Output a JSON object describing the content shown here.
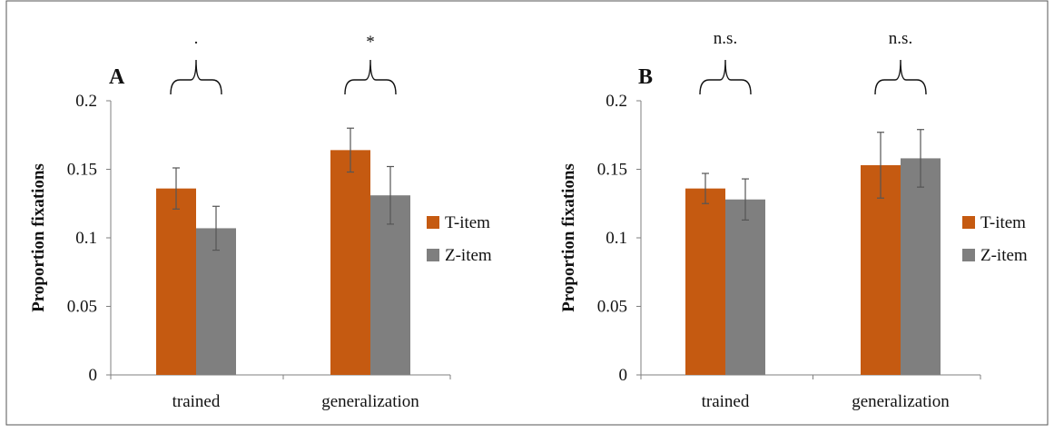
{
  "colors": {
    "t_item": "#c55a11",
    "z_item": "#7f7f7f",
    "frame": "#555555"
  },
  "chart_data": [
    {
      "type": "bar",
      "panel_label": "A",
      "ylabel": "Proportion fixations",
      "ylim": [
        0,
        0.2
      ],
      "yticks": [
        "0",
        "0.05",
        "0.1",
        "0.15",
        "0.2"
      ],
      "categories": [
        "trained",
        "generalization"
      ],
      "series": [
        {
          "name": "T-item",
          "values": [
            0.136,
            0.164
          ],
          "errors": [
            0.015,
            0.016
          ]
        },
        {
          "name": "Z-item",
          "values": [
            0.107,
            0.131
          ],
          "errors": [
            0.016,
            0.021
          ]
        }
      ],
      "significance": [
        ".",
        "*"
      ],
      "legend": "right",
      "grid": false
    },
    {
      "type": "bar",
      "panel_label": "B",
      "ylabel": "Proportion fixations",
      "ylim": [
        0,
        0.2
      ],
      "yticks": [
        "0",
        "0.05",
        "0.1",
        "0.15",
        "0.2"
      ],
      "categories": [
        "trained",
        "generalization"
      ],
      "series": [
        {
          "name": "T-item",
          "values": [
            0.136,
            0.153
          ],
          "errors": [
            0.011,
            0.024
          ]
        },
        {
          "name": "Z-item",
          "values": [
            0.128,
            0.158
          ],
          "errors": [
            0.015,
            0.021
          ]
        }
      ],
      "significance": [
        "n.s.",
        "n.s."
      ],
      "legend": "right",
      "grid": false
    }
  ]
}
